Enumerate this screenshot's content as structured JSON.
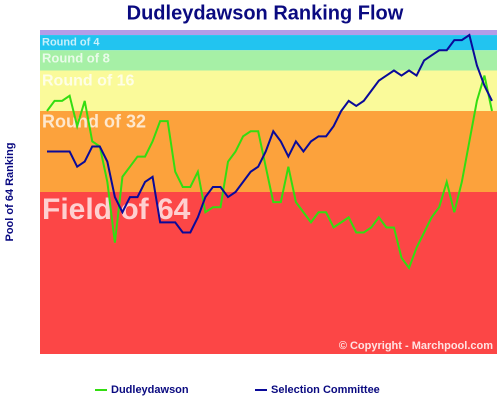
{
  "chart_data": {
    "type": "line",
    "title": "Dudleydawson Ranking Flow",
    "y_label": "Pool of 64 Ranking",
    "ylim": [
      0,
      64
    ],
    "y_inverted": true,
    "bands": [
      {
        "from": 0,
        "to": 1,
        "color": "#b49ce8"
      },
      {
        "name": "Round of 4",
        "from": 1,
        "to": 4,
        "color": "#22c4f0"
      },
      {
        "name": "Round of 8",
        "from": 4,
        "to": 8,
        "color": "#a6f0a6"
      },
      {
        "name": "Round of 16",
        "from": 8,
        "to": 16,
        "color": "#fafa9a"
      },
      {
        "name": "Round of 32",
        "from": 16,
        "to": 32,
        "color": "#fca23c"
      },
      {
        "name": "Field of 64",
        "from": 32,
        "to": 64,
        "color": "#fc4646"
      }
    ],
    "annotation": "© Copyright - Marchpool.com",
    "series": [
      {
        "name": "Dudleydawson",
        "color": "#33dd11",
        "values": [
          16,
          14,
          14,
          13,
          19,
          14,
          22,
          23,
          30,
          42,
          29,
          27,
          25,
          25,
          22,
          18,
          18,
          28,
          31,
          31,
          28,
          36,
          35,
          35,
          26,
          24,
          21,
          20,
          20,
          27,
          34,
          34,
          27,
          34,
          36,
          38,
          36,
          36,
          39,
          38,
          37,
          40,
          40,
          39,
          37,
          39,
          39,
          45,
          47,
          43,
          40,
          37,
          35,
          30,
          36,
          30,
          22,
          14,
          9,
          16
        ]
      },
      {
        "name": "Selection Committee",
        "color": "#0a0a99",
        "values": [
          24,
          24,
          24,
          24,
          27,
          26,
          23,
          23,
          26,
          33,
          36,
          33,
          33,
          30,
          29,
          38,
          38,
          38,
          40,
          40,
          37,
          33,
          31,
          31,
          33,
          32,
          30,
          28,
          27,
          24,
          20,
          22,
          25,
          22,
          24,
          22,
          21,
          21,
          19,
          16,
          14,
          15,
          14,
          12,
          10,
          9,
          8,
          9,
          8,
          9,
          6,
          5,
          4,
          4,
          2,
          2,
          1,
          7,
          11,
          14
        ]
      }
    ]
  }
}
